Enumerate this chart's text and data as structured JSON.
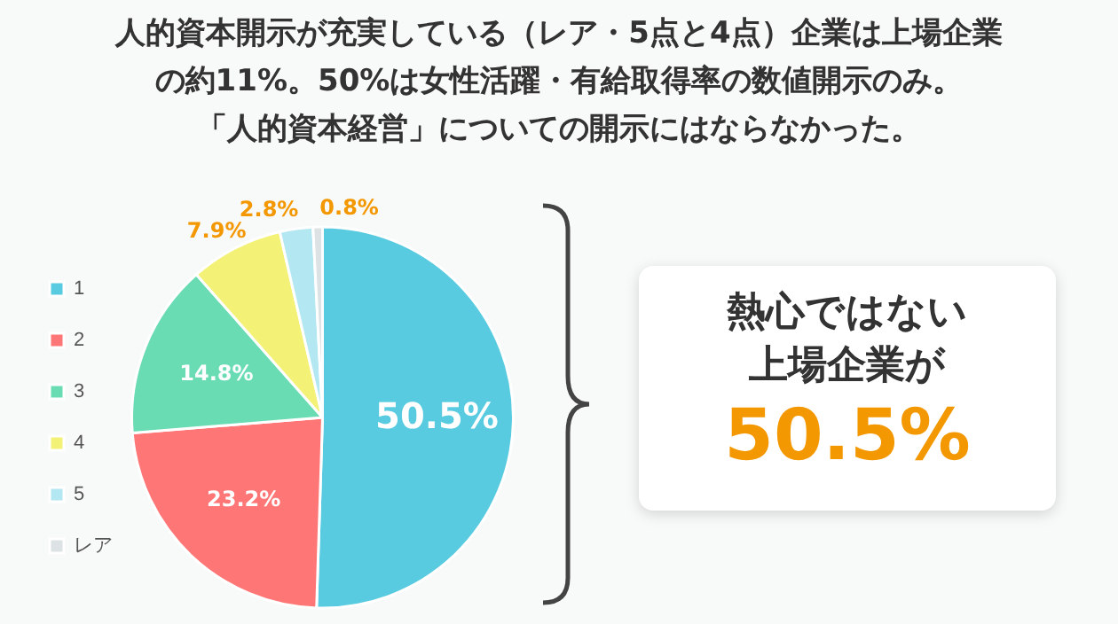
{
  "chart_data": {
    "type": "pie",
    "title": "人的資本開示が充実している（レア・5点と4点）企業は上場企業の約11%。50%は女性活躍・有給取得率の数値開示のみ。",
    "subtitle": "「人的資本経営」についての開示にはならなかった。",
    "categories": [
      "1",
      "2",
      "3",
      "4",
      "5",
      "レア"
    ],
    "values": [
      50.5,
      23.2,
      14.8,
      7.9,
      2.8,
      0.8
    ],
    "colors": [
      "#58cbe0",
      "#ff7676",
      "#6adcb3",
      "#f3f276",
      "#b3e8f2",
      "#dde2e4"
    ],
    "value_labels": [
      "50.5%",
      "23.2%",
      "14.8%",
      "7.9%",
      "2.8%",
      "0.8%"
    ],
    "legend": "left",
    "annotations": [
      "熱心ではない上場企業が",
      "50.5%"
    ]
  }
}
